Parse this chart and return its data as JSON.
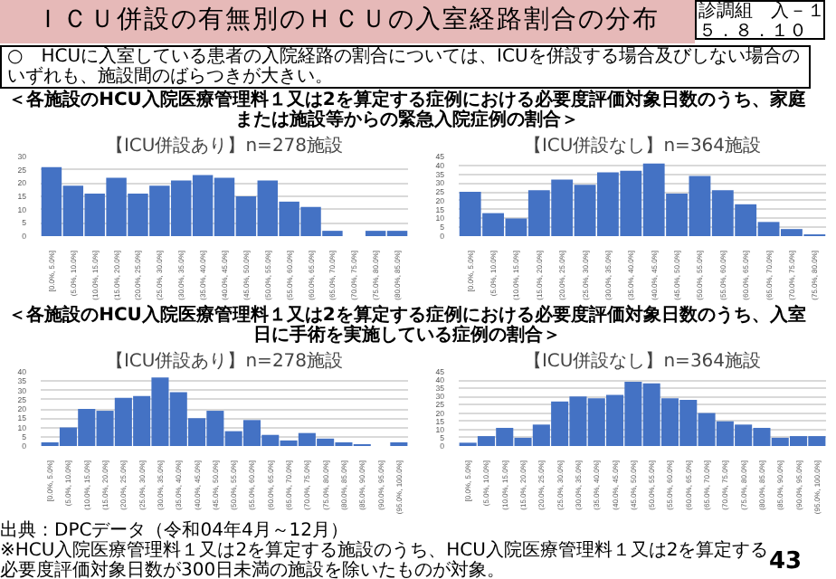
{
  "chart_data": [
    {
      "type": "bar",
      "title": "【ICU併設あり】n=278施設",
      "subtitle": "＜各施設のHCU入院医療管理料１又は2を算定する症例における必要度評価対象日数のうち、家庭または施設等からの緊急入院症例の割合＞",
      "annotations": [
        "ＩＣＵ併設の有無別のＨＣＵの入室経路割合の分布",
        "診調組　入－１",
        "５．８．１０",
        "○　HCUに入室している患者の入院経路の割合については、ICUを併設する場合及びしない場合のいずれも、施設間のばらつきが大きい。"
      ],
      "categories": [
        "[0.0%, 5.0%]",
        "(5.0%, 10.0%]",
        "(10.0%, 15.0%]",
        "(15.0%, 20.0%]",
        "(20.0%, 25.0%]",
        "(25.0%, 30.0%]",
        "(30.0%, 35.0%]",
        "(35.0%, 40.0%]",
        "(40.0%, 45.0%]",
        "(45.0%, 50.0%]",
        "(50.0%, 55.0%]",
        "(55.0%, 60.0%]",
        "(60.0%, 65.0%]",
        "(65.0%, 70.0%]",
        "(70.0%, 75.0%]",
        "(75.0%, 80.0%]",
        "(80.0%, 85.0%]"
      ],
      "values": [
        26,
        19,
        16,
        22,
        16,
        19,
        21,
        23,
        22,
        15,
        21,
        13,
        11,
        2,
        0,
        2,
        2
      ],
      "color": "#4472c4",
      "ylim": [
        0,
        30
      ],
      "yticks": [
        0,
        5,
        10,
        15,
        20,
        25,
        30
      ],
      "grid": "y"
    },
    {
      "type": "bar",
      "title": "【ICU併設なし】n=364施設",
      "categories": [
        "[0.0%, 5.0%]",
        "(5.0%, 10.0%]",
        "(10.0%, 15.0%]",
        "(15.0%, 20.0%]",
        "(20.0%, 25.0%]",
        "(25.0%, 30.0%]",
        "(30.0%, 35.0%]",
        "(35.0%, 40.0%]",
        "(40.0%, 45.0%]",
        "(45.0%, 50.0%]",
        "(50.0%, 55.0%]",
        "(55.0%, 60.0%]",
        "(60.0%, 65.0%]",
        "(65.0%, 70.0%]",
        "(70.0%, 75.0%]",
        "(75.0%, 80.0%]"
      ],
      "values": [
        25,
        13,
        10,
        26,
        32,
        29,
        36,
        37,
        41,
        24,
        34,
        26,
        18,
        8,
        4,
        1
      ],
      "color": "#4472c4",
      "ylim": [
        0,
        45
      ],
      "yticks": [
        0,
        5,
        10,
        15,
        20,
        25,
        30,
        35,
        40,
        45
      ],
      "grid": "y"
    },
    {
      "type": "bar",
      "title": "【ICU併設あり】n=278施設",
      "subtitle": "＜各施設のHCU入院医療管理料１又は2を算定する症例における必要度評価対象日数のうち、入室日に手術を実施している症例の割合＞",
      "categories": [
        "[0.0%, 5.0%]",
        "(5.0%, 10.0%]",
        "(10.0%, 15.0%]",
        "(15.0%, 20.0%]",
        "(20.0%, 25.0%]",
        "(25.0%, 30.0%]",
        "(30.0%, 35.0%]",
        "(35.0%, 40.0%]",
        "(40.0%, 45.0%]",
        "(45.0%, 50.0%]",
        "(50.0%, 55.0%]",
        "(55.0%, 60.0%]",
        "(60.0%, 65.0%]",
        "(65.0%, 70.0%]",
        "(70.0%, 75.0%]",
        "(75.0%, 80.0%]",
        "(80.0%, 85.0%]",
        "(85.0%, 90.0%]",
        "(90.0%, 95.0%]",
        "(95.0%, 100.0%]"
      ],
      "values": [
        2,
        10,
        20,
        19,
        26,
        27,
        37,
        29,
        15,
        19,
        8,
        14,
        6,
        3,
        7,
        4,
        2,
        1,
        0,
        2
      ],
      "color": "#4472c4",
      "ylim": [
        0,
        40
      ],
      "yticks": [
        0,
        5,
        10,
        15,
        20,
        25,
        30,
        35,
        40
      ],
      "grid": "y"
    },
    {
      "type": "bar",
      "title": "【ICU併設なし】n=364施設",
      "annotations": [
        "出典：DPCデータ（令和04年4月～12月）",
        "※HCU入院医療管理料１又は2を算定する施設のうち、HCU入院医療管理料１又は2を算定する必要度評価対象日数が300日未満の施設を除いたものが対象。",
        "43"
      ],
      "categories": [
        "[0.0%, 5.0%]",
        "(5.0%, 10.0%]",
        "(10.0%, 15.0%]",
        "(15.0%, 20.0%]",
        "(20.0%, 25.0%]",
        "(25.0%, 30.0%]",
        "(30.0%, 35.0%]",
        "(35.0%, 40.0%]",
        "(40.0%, 45.0%]",
        "(45.0%, 50.0%]",
        "(50.0%, 55.0%]",
        "(55.0%, 60.0%]",
        "(60.0%, 65.0%]",
        "(65.0%, 70.0%]",
        "(70.0%, 75.0%]",
        "(75.0%, 80.0%]",
        "(80.0%, 85.0%]",
        "(85.0%, 90.0%]",
        "(90.0%, 95.0%]",
        "(95.0%, 100.0%]"
      ],
      "values": [
        2,
        6,
        11,
        5,
        13,
        27,
        30,
        29,
        31,
        39,
        38,
        29,
        28,
        20,
        15,
        13,
        11,
        5,
        6,
        6
      ],
      "color": "#4472c4",
      "ylim": [
        0,
        45
      ],
      "yticks": [
        0,
        5,
        10,
        15,
        20,
        25,
        30,
        35,
        40,
        45
      ],
      "grid": "y"
    }
  ]
}
